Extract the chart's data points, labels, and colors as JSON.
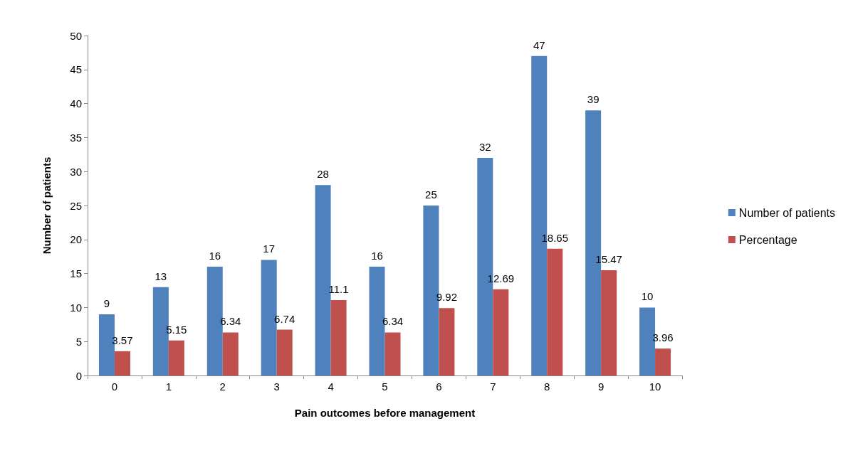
{
  "chart_data": {
    "type": "bar",
    "xlabel": "Pain outcomes before management",
    "ylabel": "Number of patients",
    "categories": [
      "0",
      "1",
      "2",
      "3",
      "4",
      "5",
      "6",
      "7",
      "8",
      "9",
      "10"
    ],
    "series": [
      {
        "name": "Number of patients",
        "color": "#4f81bd",
        "values": [
          9,
          13,
          16,
          17,
          28,
          16,
          25,
          32,
          47,
          39,
          10
        ]
      },
      {
        "name": "Percentage",
        "color": "#c0504d",
        "values": [
          3.57,
          5.15,
          6.34,
          6.74,
          11.1,
          6.34,
          9.92,
          12.69,
          18.65,
          15.47,
          3.96
        ]
      }
    ],
    "ylim": [
      0,
      50
    ],
    "yticks": [
      0,
      5,
      10,
      15,
      20,
      25,
      30,
      35,
      40,
      45,
      50
    ],
    "grid": false,
    "legend": "right",
    "data_labels": true
  }
}
